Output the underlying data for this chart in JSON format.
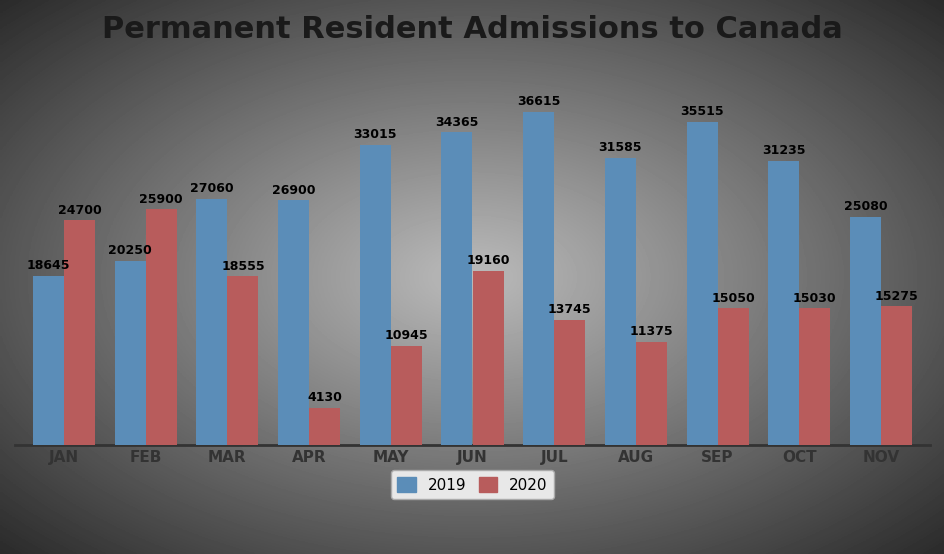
{
  "title": "Permanent Resident Admissions to Canada",
  "months": [
    "JAN",
    "FEB",
    "MAR",
    "APR",
    "MAY",
    "JUN",
    "JUL",
    "AUG",
    "SEP",
    "OCT",
    "NOV"
  ],
  "values_2019": [
    18645,
    20250,
    27060,
    26900,
    33015,
    34365,
    36615,
    31585,
    35515,
    31235,
    25080
  ],
  "values_2020": [
    24700,
    25900,
    18555,
    4130,
    10945,
    19160,
    13745,
    11375,
    15050,
    15030,
    15275
  ],
  "color_2019": "#5B8DB8",
  "color_2020": "#B85C5C",
  "background_outer": "#BEBEBE",
  "background_inner": "#E8E8E8",
  "title_fontsize": 22,
  "label_fontsize": 9,
  "tick_fontsize": 11,
  "legend_fontsize": 11,
  "bar_width": 0.38,
  "ylim": [
    0,
    42000
  ],
  "grid_color": "#BBBBBB",
  "legend_labels": [
    "2019",
    "2020"
  ]
}
